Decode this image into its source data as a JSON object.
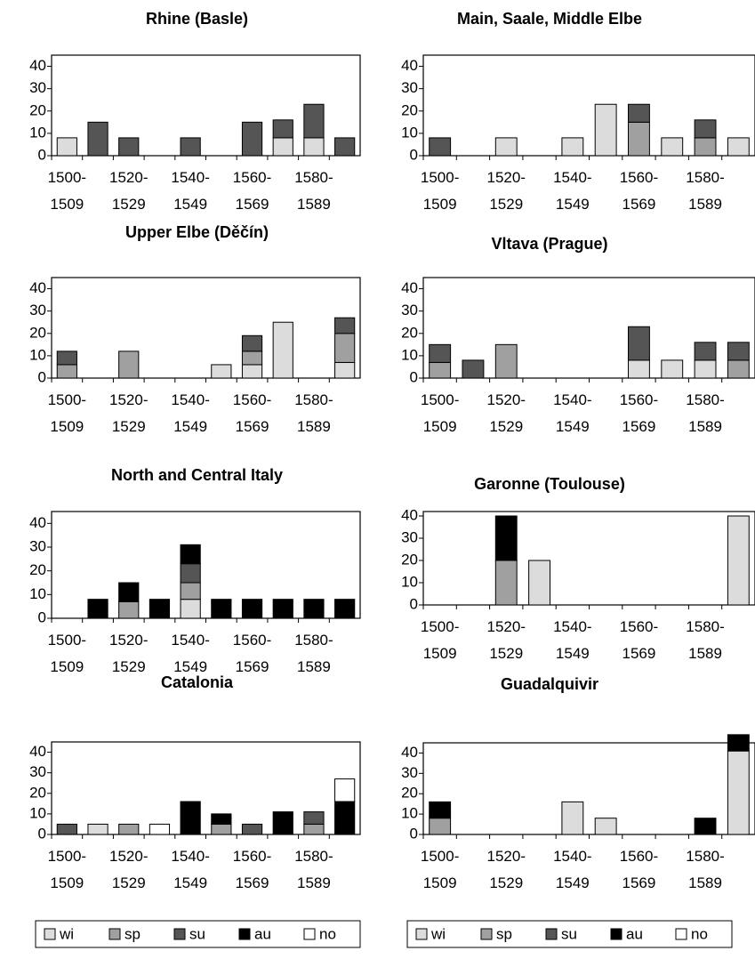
{
  "chart_data": [
    {
      "type": "stacked_bar",
      "title": "Rhine (Basle)",
      "categories": [
        "1500-\n1509",
        null,
        "1520-\n1529",
        null,
        "1540-\n1549",
        null,
        "1560-\n1569",
        null,
        "1580-\n1589",
        null
      ],
      "series": [
        {
          "name": "wi",
          "color": "#dcdcdc",
          "values": [
            8,
            0,
            0,
            0,
            0,
            0,
            0,
            8,
            8,
            0
          ]
        },
        {
          "name": "sp",
          "color": "#a0a0a0",
          "values": [
            0,
            0,
            0,
            0,
            0,
            0,
            0,
            0,
            0,
            0
          ]
        },
        {
          "name": "su",
          "color": "#555555",
          "values": [
            0,
            15,
            8,
            0,
            8,
            0,
            15,
            8,
            15,
            8
          ]
        },
        {
          "name": "au",
          "color": "#000000",
          "values": [
            0,
            0,
            0,
            0,
            0,
            0,
            0,
            0,
            0,
            0
          ]
        },
        {
          "name": "no",
          "color": "#ffffff",
          "values": [
            0,
            0,
            0,
            0,
            0,
            0,
            0,
            0,
            0,
            0
          ]
        }
      ],
      "ylim": [
        0,
        45
      ],
      "yticks": [
        0,
        10,
        20,
        30,
        40
      ],
      "legend": false
    },
    {
      "type": "stacked_bar",
      "title": "Main, Saale, Middle Elbe",
      "categories": [
        "1500-\n1509",
        null,
        "1520-\n1529",
        null,
        "1540-\n1549",
        null,
        "1560-\n1569",
        null,
        "1580-\n1589",
        null
      ],
      "series": [
        {
          "name": "wi",
          "color": "#dcdcdc",
          "values": [
            0,
            0,
            8,
            0,
            8,
            23,
            0,
            8,
            0,
            8
          ]
        },
        {
          "name": "sp",
          "color": "#a0a0a0",
          "values": [
            0,
            0,
            0,
            0,
            0,
            0,
            15,
            0,
            8,
            0
          ]
        },
        {
          "name": "su",
          "color": "#555555",
          "values": [
            8,
            0,
            0,
            0,
            0,
            0,
            8,
            0,
            8,
            0
          ]
        },
        {
          "name": "au",
          "color": "#000000",
          "values": [
            0,
            0,
            0,
            0,
            0,
            0,
            0,
            0,
            0,
            0
          ]
        },
        {
          "name": "no",
          "color": "#ffffff",
          "values": [
            0,
            0,
            0,
            0,
            0,
            0,
            0,
            0,
            0,
            0
          ]
        }
      ],
      "ylim": [
        0,
        45
      ],
      "yticks": [
        0,
        10,
        20,
        30,
        40
      ],
      "legend": false
    },
    {
      "type": "stacked_bar",
      "title": "Upper Elbe (Děčín)",
      "categories": [
        "1500-\n1509",
        null,
        "1520-\n1529",
        null,
        "1540-\n1549",
        null,
        "1560-\n1569",
        null,
        "1580-\n1589",
        null
      ],
      "series": [
        {
          "name": "wi",
          "color": "#dcdcdc",
          "values": [
            0,
            0,
            0,
            0,
            0,
            6,
            6,
            25,
            0,
            7
          ]
        },
        {
          "name": "sp",
          "color": "#a0a0a0",
          "values": [
            6,
            0,
            12,
            0,
            0,
            0,
            6,
            0,
            0,
            13
          ]
        },
        {
          "name": "su",
          "color": "#555555",
          "values": [
            6,
            0,
            0,
            0,
            0,
            0,
            7,
            0,
            0,
            7
          ]
        },
        {
          "name": "au",
          "color": "#000000",
          "values": [
            0,
            0,
            0,
            0,
            0,
            0,
            0,
            0,
            0,
            0
          ]
        },
        {
          "name": "no",
          "color": "#ffffff",
          "values": [
            0,
            0,
            0,
            0,
            0,
            0,
            0,
            0,
            0,
            0
          ]
        }
      ],
      "ylim": [
        0,
        45
      ],
      "yticks": [
        0,
        10,
        20,
        30,
        40
      ],
      "legend": false
    },
    {
      "type": "stacked_bar",
      "title": "Vltava (Prague)",
      "categories": [
        "1500-\n1509",
        null,
        "1520-\n1529",
        null,
        "1540-\n1549",
        null,
        "1560-\n1569",
        null,
        "1580-\n1589",
        null
      ],
      "series": [
        {
          "name": "wi",
          "color": "#dcdcdc",
          "values": [
            0,
            0,
            0,
            0,
            0,
            0,
            8,
            8,
            8,
            0
          ]
        },
        {
          "name": "sp",
          "color": "#a0a0a0",
          "values": [
            7,
            0,
            15,
            0,
            0,
            0,
            0,
            0,
            0,
            8
          ]
        },
        {
          "name": "su",
          "color": "#555555",
          "values": [
            8,
            8,
            0,
            0,
            0,
            0,
            15,
            0,
            8,
            8
          ]
        },
        {
          "name": "au",
          "color": "#000000",
          "values": [
            0,
            0,
            0,
            0,
            0,
            0,
            0,
            0,
            0,
            0
          ]
        },
        {
          "name": "no",
          "color": "#ffffff",
          "values": [
            0,
            0,
            0,
            0,
            0,
            0,
            0,
            0,
            0,
            0
          ]
        }
      ],
      "ylim": [
        0,
        45
      ],
      "yticks": [
        0,
        10,
        20,
        30,
        40
      ],
      "legend": false
    },
    {
      "type": "stacked_bar",
      "title": "North and Central Italy",
      "categories": [
        "1500-\n1509",
        null,
        "1520-\n1529",
        null,
        "1540-\n1549",
        null,
        "1560-\n1569",
        null,
        "1580-\n1589",
        null
      ],
      "series": [
        {
          "name": "wi",
          "color": "#dcdcdc",
          "values": [
            0,
            0,
            0,
            0,
            8,
            0,
            0,
            0,
            0,
            0
          ]
        },
        {
          "name": "sp",
          "color": "#a0a0a0",
          "values": [
            0,
            0,
            7,
            0,
            7,
            0,
            0,
            0,
            0,
            0
          ]
        },
        {
          "name": "su",
          "color": "#555555",
          "values": [
            0,
            0,
            0,
            0,
            8,
            0,
            0,
            0,
            0,
            0
          ]
        },
        {
          "name": "au",
          "color": "#000000",
          "values": [
            0,
            8,
            8,
            8,
            8,
            8,
            8,
            8,
            8,
            8
          ]
        },
        {
          "name": "no",
          "color": "#ffffff",
          "values": [
            0,
            0,
            0,
            0,
            0,
            0,
            0,
            0,
            0,
            0
          ]
        }
      ],
      "ylim": [
        0,
        45
      ],
      "yticks": [
        0,
        10,
        20,
        30,
        40
      ],
      "legend": false
    },
    {
      "type": "stacked_bar",
      "title": "Garonne (Toulouse)",
      "categories": [
        "1500-\n1509",
        null,
        "1520-\n1529",
        null,
        "1540-\n1549",
        null,
        "1560-\n1569",
        null,
        "1580-\n1589",
        null
      ],
      "series": [
        {
          "name": "wi",
          "color": "#dcdcdc",
          "values": [
            0,
            0,
            0,
            20,
            0,
            0,
            0,
            0,
            0,
            40
          ]
        },
        {
          "name": "sp",
          "color": "#a0a0a0",
          "values": [
            0,
            0,
            20,
            0,
            0,
            0,
            0,
            0,
            0,
            0
          ]
        },
        {
          "name": "su",
          "color": "#555555",
          "values": [
            0,
            0,
            0,
            0,
            0,
            0,
            0,
            0,
            0,
            0
          ]
        },
        {
          "name": "au",
          "color": "#000000",
          "values": [
            0,
            0,
            20,
            0,
            0,
            0,
            0,
            0,
            0,
            0
          ]
        },
        {
          "name": "no",
          "color": "#ffffff",
          "values": [
            0,
            0,
            0,
            0,
            0,
            0,
            0,
            0,
            0,
            0
          ]
        }
      ],
      "ylim": [
        0,
        42
      ],
      "yticks": [
        0,
        10,
        20,
        30,
        40
      ],
      "legend": false
    },
    {
      "type": "stacked_bar",
      "title": "Catalonia",
      "categories": [
        "1500-\n1509",
        null,
        "1520-\n1529",
        null,
        "1540-\n1549",
        null,
        "1560-\n1569",
        null,
        "1580-\n1589",
        null
      ],
      "series": [
        {
          "name": "wi",
          "color": "#dcdcdc",
          "values": [
            0,
            5,
            0,
            0,
            0,
            0,
            0,
            0,
            0,
            0
          ]
        },
        {
          "name": "sp",
          "color": "#a0a0a0",
          "values": [
            0,
            0,
            5,
            0,
            0,
            5,
            0,
            0,
            5,
            0
          ]
        },
        {
          "name": "su",
          "color": "#555555",
          "values": [
            5,
            0,
            0,
            0,
            0,
            0,
            5,
            0,
            6,
            0
          ]
        },
        {
          "name": "au",
          "color": "#000000",
          "values": [
            0,
            0,
            0,
            0,
            16,
            5,
            0,
            11,
            0,
            16
          ]
        },
        {
          "name": "no",
          "color": "#ffffff",
          "values": [
            0,
            0,
            0,
            5,
            0,
            0,
            0,
            0,
            0,
            11
          ]
        }
      ],
      "ylim": [
        0,
        45
      ],
      "yticks": [
        0,
        10,
        20,
        30,
        40
      ],
      "legend": true
    },
    {
      "type": "stacked_bar",
      "title": "Guadalquivir",
      "categories": [
        "1500-\n1509",
        null,
        "1520-\n1529",
        null,
        "1540-\n1549",
        null,
        "1560-\n1569",
        null,
        "1580-\n1589",
        null
      ],
      "series": [
        {
          "name": "wi",
          "color": "#dcdcdc",
          "values": [
            0,
            0,
            0,
            0,
            16,
            8,
            0,
            0,
            0,
            41
          ]
        },
        {
          "name": "sp",
          "color": "#a0a0a0",
          "values": [
            8,
            0,
            0,
            0,
            0,
            0,
            0,
            0,
            0,
            0
          ]
        },
        {
          "name": "su",
          "color": "#555555",
          "values": [
            0,
            0,
            0,
            0,
            0,
            0,
            0,
            0,
            0,
            0
          ]
        },
        {
          "name": "au",
          "color": "#000000",
          "values": [
            8,
            0,
            0,
            0,
            0,
            0,
            0,
            0,
            8,
            8
          ]
        },
        {
          "name": "no",
          "color": "#ffffff",
          "values": [
            0,
            0,
            0,
            0,
            0,
            0,
            0,
            0,
            0,
            0
          ]
        }
      ],
      "ylim": [
        0,
        45
      ],
      "yticks": [
        0,
        10,
        20,
        30,
        40
      ],
      "legend": true
    }
  ]
}
